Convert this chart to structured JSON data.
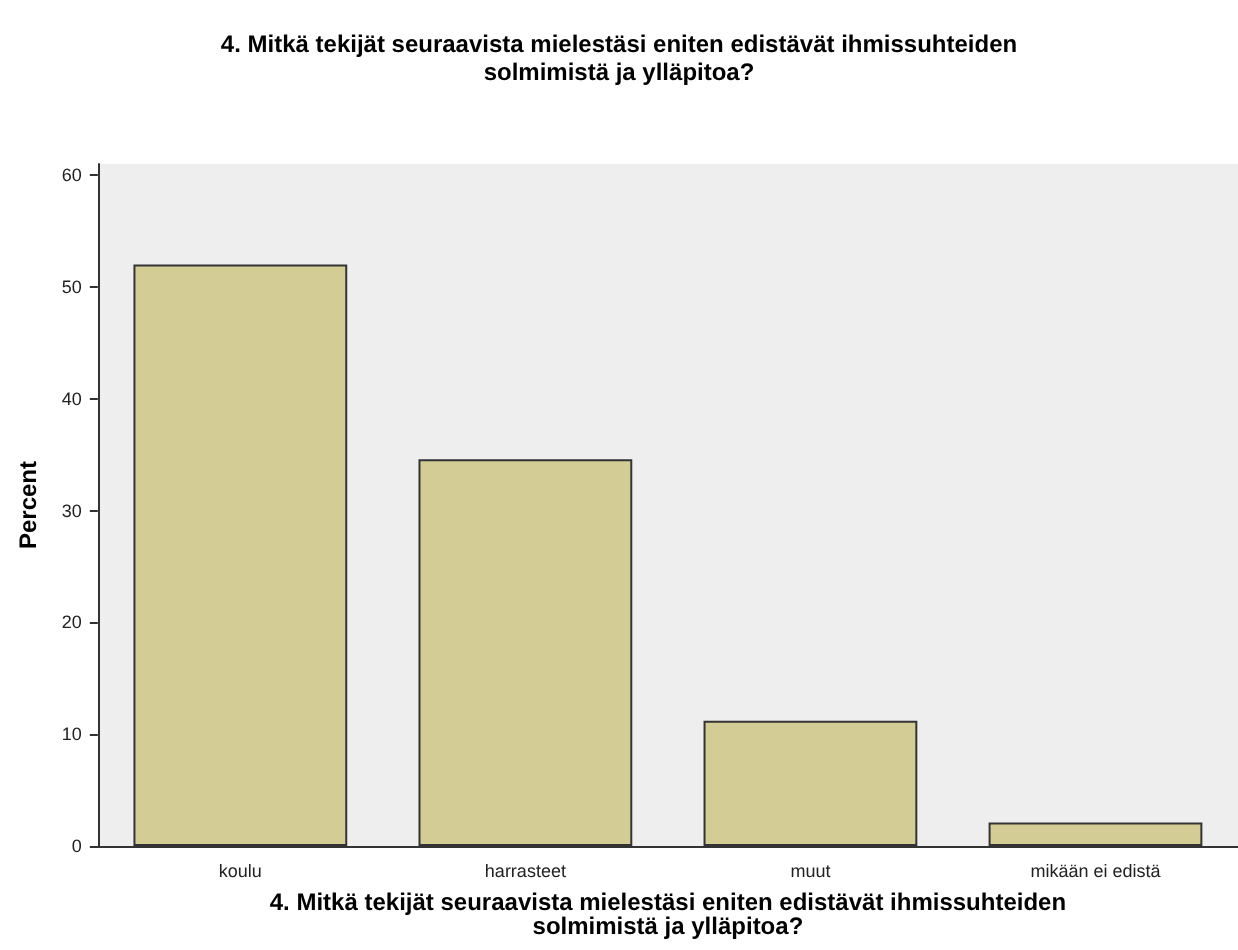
{
  "chart_data": {
    "type": "bar",
    "title": "4. Mitkä tekijät seuraavista mielestäsi eniten edistävät ihmissuhteiden\nsolmimistä ja ylläpitoa?",
    "xlabel": "4. Mitkä tekijät seuraavista mielestäsi eniten edistävät ihmissuhteiden\nsolmimistä ja ylläpitoa?",
    "ylabel": "Percent",
    "categories": [
      "koulu",
      "harrasteet",
      "muut",
      "mikään ei edistä"
    ],
    "values": [
      52.0,
      34.6,
      11.2,
      2.1
    ],
    "color": "#d3cd95",
    "ylim": [
      0,
      61
    ],
    "yticks": [
      0,
      10,
      20,
      30,
      40,
      50,
      60
    ],
    "grid": false
  }
}
